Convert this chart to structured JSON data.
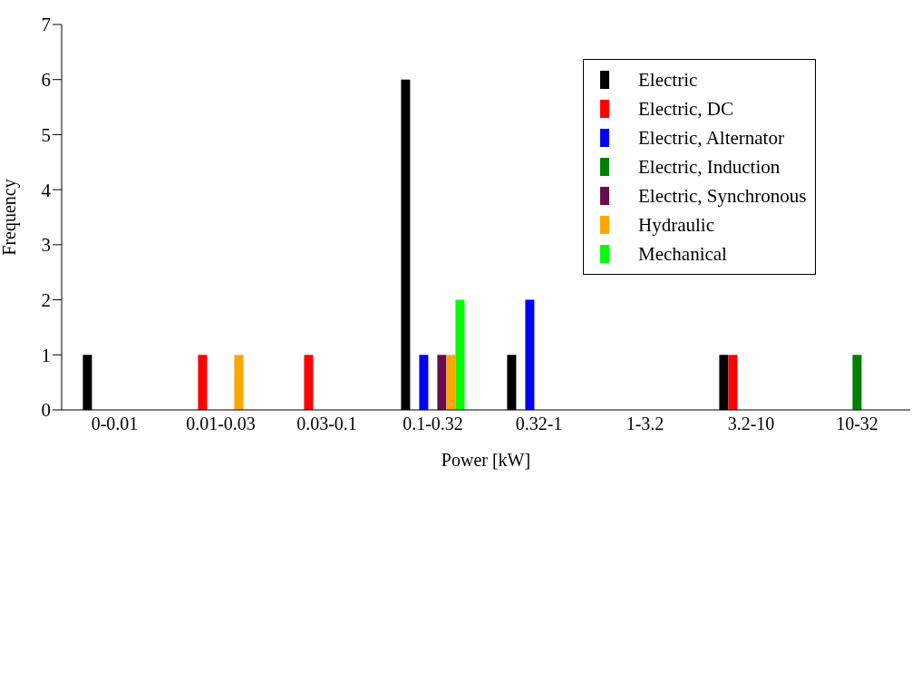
{
  "chart_data": {
    "type": "bar",
    "xlabel": "Power [kW]",
    "ylabel": "Frequency",
    "categories": [
      "0-0.01",
      "0.01-0.03",
      "0.03-0.1",
      "0.1-0.32",
      "0.32-1",
      "1-3.2",
      "3.2-10",
      "10-32"
    ],
    "series": [
      {
        "name": "Electric",
        "color": "#000000",
        "values": [
          1,
          0,
          0,
          6,
          1,
          0,
          1,
          0
        ]
      },
      {
        "name": "Electric, DC",
        "color": "#ff0000",
        "values": [
          0,
          1,
          1,
          0,
          0,
          0,
          1,
          0
        ]
      },
      {
        "name": "Electric, Alternator",
        "color": "#0000ff",
        "values": [
          0,
          0,
          0,
          1,
          2,
          0,
          0,
          0
        ]
      },
      {
        "name": "Electric, Induction",
        "color": "#008000",
        "values": [
          0,
          0,
          0,
          0,
          0,
          0,
          0,
          1
        ]
      },
      {
        "name": "Electric, Synchronous",
        "color": "#6b0a4f",
        "values": [
          0,
          0,
          0,
          1,
          0,
          0,
          0,
          0
        ]
      },
      {
        "name": "Hydraulic",
        "color": "#ffa500",
        "values": [
          0,
          1,
          0,
          1,
          0,
          0,
          0,
          0
        ]
      },
      {
        "name": "Mechanical",
        "color": "#00ff00",
        "values": [
          0,
          0,
          0,
          2,
          0,
          0,
          0,
          0
        ]
      }
    ],
    "ylim": [
      0,
      7
    ],
    "yticks": [
      0,
      1,
      2,
      3,
      4,
      5,
      6,
      7
    ],
    "grid": false,
    "legend": "top right"
  }
}
